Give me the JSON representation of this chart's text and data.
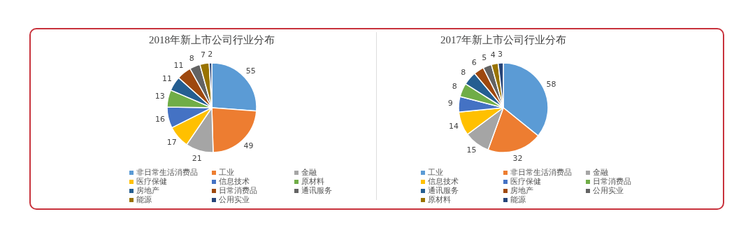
{
  "chart_data": [
    {
      "type": "pie",
      "title": "2018年新上市公司行业分布",
      "categories": [
        "非日常生活消费品",
        "工业",
        "金融",
        "医疗保健",
        "信息技术",
        "原材料",
        "房地产",
        "日常消费品",
        "通讯服务",
        "能源",
        "公用实业"
      ],
      "values": [
        55,
        49,
        21,
        17,
        16,
        13,
        11,
        11,
        8,
        7,
        2
      ],
      "colors": [
        "#5b9bd5",
        "#ed7d31",
        "#a5a5a5",
        "#ffc000",
        "#4472c4",
        "#70ad47",
        "#255e91",
        "#9e480e",
        "#636363",
        "#997300",
        "#264478"
      ],
      "data_labels": true,
      "legend": "bottom"
    },
    {
      "type": "pie",
      "title": "2017年新上市公司行业分布",
      "categories": [
        "工业",
        "非日常生活消费品",
        "金融",
        "信息技术",
        "医疗保健",
        "日常消费品",
        "通讯服务",
        "房地产",
        "公用实业",
        "原材料",
        "能源"
      ],
      "values": [
        58,
        32,
        15,
        14,
        9,
        8,
        8,
        6,
        5,
        4,
        3
      ],
      "colors": [
        "#5b9bd5",
        "#ed7d31",
        "#a5a5a5",
        "#ffc000",
        "#4472c4",
        "#70ad47",
        "#255e91",
        "#9e480e",
        "#636363",
        "#997300",
        "#264478"
      ],
      "data_labels": true,
      "legend": "bottom"
    }
  ]
}
